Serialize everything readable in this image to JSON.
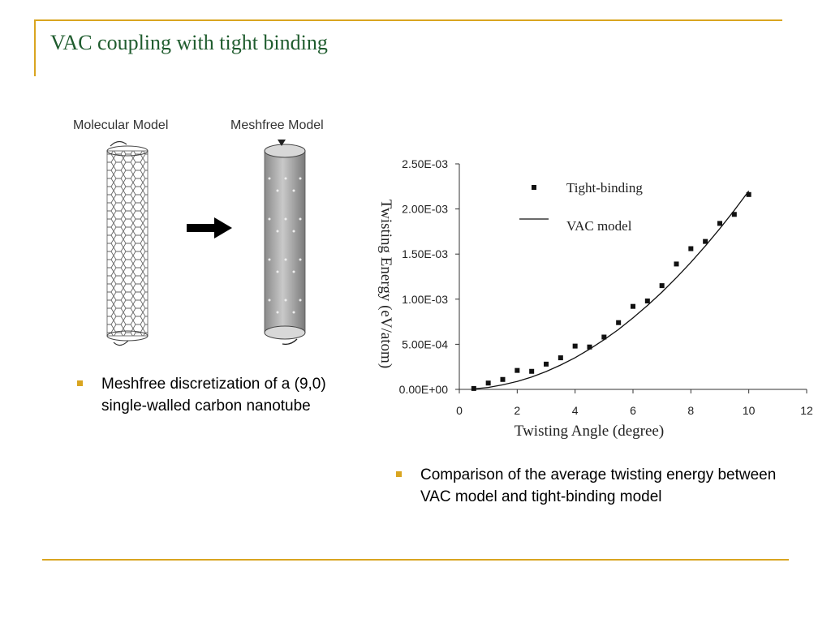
{
  "slide": {
    "title": "VAC coupling with tight binding",
    "bullet_left": "Meshfree discretization of a (9,0) single-walled carbon nanotube",
    "bullet_right": "Comparison of the average twisting energy between VAC model and tight-binding model",
    "accent_color": "#d9a520",
    "title_color": "#1f5c2e"
  },
  "figure": {
    "label_molecular": "Molecular Model",
    "label_meshfree": "Meshfree Model"
  },
  "chart_data": {
    "type": "scatter",
    "xlabel": "Twisting Angle (degree)",
    "ylabel": "Twisting Energy (eV/atom)",
    "xlim": [
      0,
      12
    ],
    "ylim": [
      0,
      0.0025
    ],
    "x_ticks": [
      "0",
      "2",
      "4",
      "6",
      "8",
      "10",
      "12"
    ],
    "y_ticks": [
      "0.00E+00",
      "5.00E-04",
      "1.00E-03",
      "1.50E-03",
      "2.00E-03",
      "2.50E-03"
    ],
    "grid": false,
    "legend_position": "top-right",
    "series": [
      {
        "name": "Tight-binding",
        "type": "scatter",
        "x": [
          0.5,
          1.0,
          1.5,
          2.0,
          2.5,
          3.0,
          3.5,
          4.0,
          4.5,
          5.0,
          5.5,
          6.0,
          6.5,
          7.0,
          7.5,
          8.0,
          8.5,
          9.0,
          9.5,
          10.0
        ],
        "y": [
          1e-05,
          7e-05,
          0.00011,
          0.00021,
          0.0002,
          0.00028,
          0.00035,
          0.00048,
          0.00047,
          0.00058,
          0.00074,
          0.00092,
          0.00098,
          0.00115,
          0.00139,
          0.00156,
          0.00164,
          0.00184,
          0.00194,
          0.00216
        ]
      },
      {
        "name": "VAC model",
        "type": "line",
        "x": [
          0.5,
          1,
          1.5,
          2,
          2.5,
          3,
          3.5,
          4,
          4.5,
          5,
          5.5,
          6,
          6.5,
          7,
          7.5,
          8,
          8.5,
          9,
          9.5,
          10
        ],
        "y": [
          5e-06,
          2.2e-05,
          5e-05,
          8.8e-05,
          0.000138,
          0.000198,
          0.00027,
          0.000352,
          0.000446,
          0.00055,
          0.000665,
          0.000792,
          0.00093,
          0.001078,
          0.001238,
          0.001408,
          0.00159,
          0.001782,
          0.001985,
          0.0022
        ]
      }
    ]
  }
}
